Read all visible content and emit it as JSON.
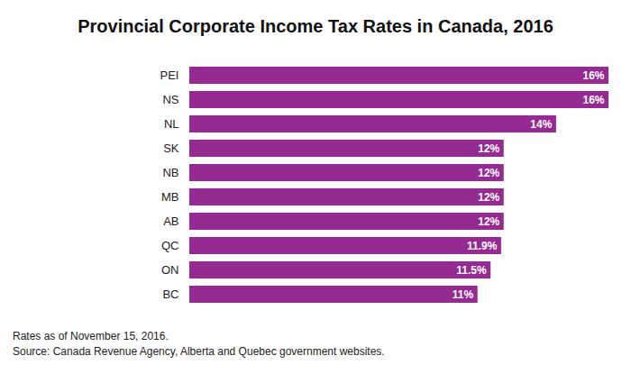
{
  "chart_data": {
    "type": "bar",
    "orientation": "horizontal",
    "title": "Provincial Corporate Income Tax Rates in Canada, 2016",
    "categories": [
      "PEI",
      "NS",
      "NL",
      "SK",
      "NB",
      "MB",
      "AB",
      "QC",
      "ON",
      "BC"
    ],
    "values": [
      16,
      16,
      14,
      12,
      12,
      12,
      12,
      11.9,
      11.5,
      11
    ],
    "value_labels": [
      "16%",
      "16%",
      "14%",
      "12%",
      "12%",
      "12%",
      "12%",
      "11.9%",
      "11.5%",
      "11%"
    ],
    "color": "#952a92",
    "xlim": [
      0,
      16
    ],
    "data_labels": true,
    "tick_labels": "y",
    "grid": false,
    "notes": [
      "Rates as of November 15, 2016.",
      "Source: Canada Revenue Agency, Alberta and Quebec government websites."
    ]
  }
}
